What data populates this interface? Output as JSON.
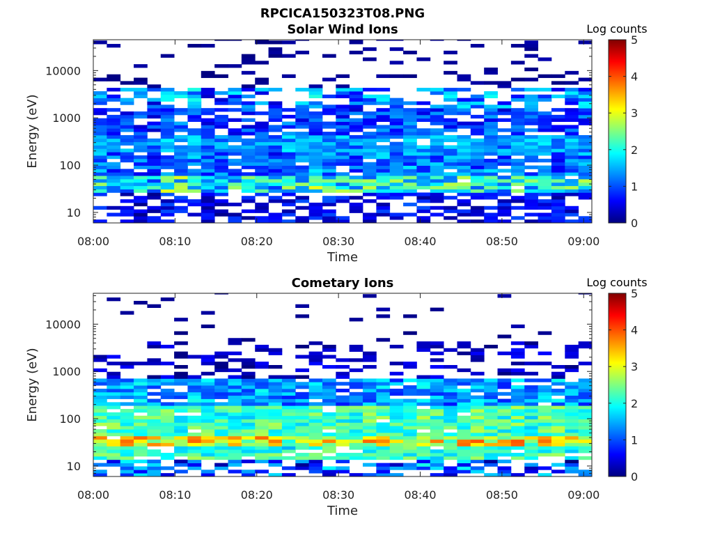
{
  "figure_title": "RPCICA150323T08.PNG",
  "colormap": [
    "#000080",
    "#0000ff",
    "#00ffff",
    "#ffff00",
    "#ff0000",
    "#800000"
  ],
  "chart_data": [
    {
      "type": "heatmap",
      "title": "Solar Wind Ions",
      "xlabel": "Time",
      "ylabel": "Energy (eV)",
      "x_tick_labels": [
        "08:00",
        "08:10",
        "08:20",
        "08:30",
        "08:40",
        "08:50",
        "09:00"
      ],
      "x_range_minutes": [
        0,
        61
      ],
      "y_scale": "log",
      "y_range": [
        6,
        45000
      ],
      "y_tick_labels": [
        "10",
        "100",
        "1000",
        "10000"
      ],
      "colorbar": {
        "label": "Log counts",
        "range": [
          0,
          5
        ],
        "tick_labels": [
          "0",
          "1",
          "2",
          "3",
          "4",
          "5"
        ]
      },
      "time_bin_count": 37,
      "energy_bands": [
        {
          "e_min": 6,
          "e_max": 25,
          "level_range": [
            0.1,
            1.0
          ],
          "coverage": 0.55
        },
        {
          "e_min": 25,
          "e_max": 60,
          "level_range": [
            1.0,
            2.8
          ],
          "coverage": 0.95
        },
        {
          "e_min": 60,
          "e_max": 200,
          "level_range": [
            0.6,
            1.7
          ],
          "coverage": 0.92
        },
        {
          "e_min": 200,
          "e_max": 400,
          "level_range": [
            0.9,
            1.8
          ],
          "coverage": 0.9
        },
        {
          "e_min": 400,
          "e_max": 1500,
          "level_range": [
            0.4,
            1.4
          ],
          "coverage": 0.8
        },
        {
          "e_min": 1500,
          "e_max": 4000,
          "level_range": [
            0.5,
            1.9
          ],
          "coverage": 0.62
        },
        {
          "e_min": 4000,
          "e_max": 45000,
          "level_range": [
            0.0,
            0.2
          ],
          "coverage": 0.16
        }
      ]
    },
    {
      "type": "heatmap",
      "title": "Cometary Ions",
      "xlabel": "Time",
      "ylabel": "Energy (eV)",
      "x_tick_labels": [
        "08:00",
        "08:10",
        "08:20",
        "08:30",
        "08:40",
        "08:50",
        "09:00"
      ],
      "x_range_minutes": [
        0,
        61
      ],
      "y_scale": "log",
      "y_range": [
        6,
        45000
      ],
      "y_tick_labels": [
        "10",
        "100",
        "1000",
        "10000"
      ],
      "colorbar": {
        "label": "Log counts",
        "range": [
          0,
          5
        ],
        "tick_labels": [
          "0",
          "1",
          "2",
          "3",
          "4",
          "5"
        ]
      },
      "time_bin_count": 37,
      "energy_bands": [
        {
          "e_min": 6,
          "e_max": 14,
          "level_range": [
            0.1,
            1.8
          ],
          "coverage": 0.55
        },
        {
          "e_min": 14,
          "e_max": 25,
          "level_range": [
            1.6,
            2.6
          ],
          "coverage": 0.92
        },
        {
          "e_min": 25,
          "e_max": 45,
          "level_range": [
            2.2,
            3.8
          ],
          "coverage": 0.97
        },
        {
          "e_min": 45,
          "e_max": 200,
          "level_range": [
            1.7,
            2.7
          ],
          "coverage": 0.95
        },
        {
          "e_min": 200,
          "e_max": 700,
          "level_range": [
            0.8,
            1.9
          ],
          "coverage": 0.88
        },
        {
          "e_min": 700,
          "e_max": 4000,
          "level_range": [
            0.0,
            0.6
          ],
          "coverage": 0.3
        },
        {
          "e_min": 4000,
          "e_max": 45000,
          "level_range": [
            0.0,
            0.2
          ],
          "coverage": 0.05
        }
      ]
    }
  ]
}
